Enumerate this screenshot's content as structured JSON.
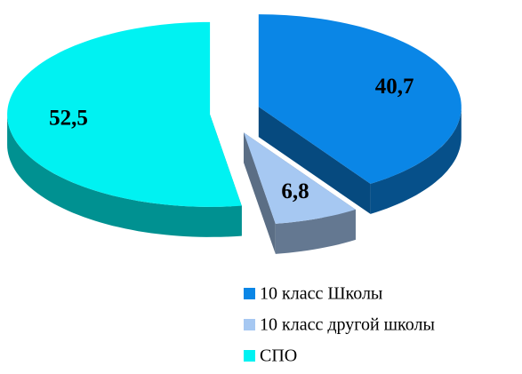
{
  "chart_data": {
    "type": "pie",
    "three_d": true,
    "categories": [
      "10 класс Школы",
      "10 класс другой школы",
      "СПО"
    ],
    "values": [
      40.7,
      6.8,
      52.5
    ],
    "value_labels": [
      "40,7",
      "6,8",
      "52,5"
    ],
    "colors": [
      "#0a86e6",
      "#a6c8f2",
      "#00f2f2"
    ],
    "legend": "bottom-right"
  }
}
